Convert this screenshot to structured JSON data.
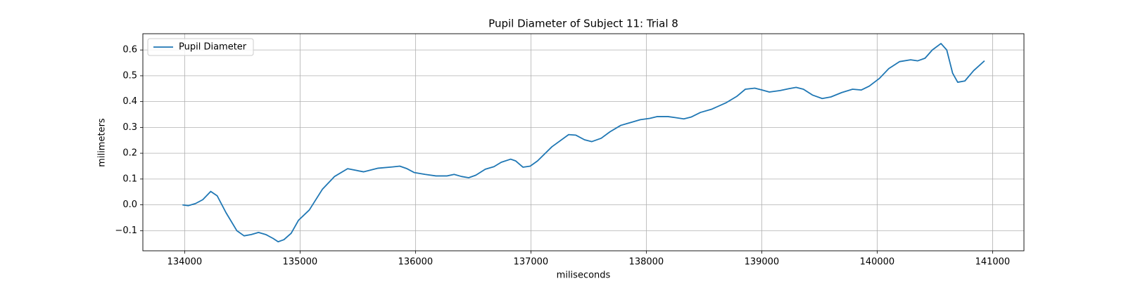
{
  "chart_data": {
    "type": "line",
    "title": "Pupil Diameter of Subject 11: Trial 8",
    "x_label": "miliseconds",
    "y_label": "milimeters",
    "x": [
      133981,
      134031,
      134094,
      134157,
      134226,
      134282,
      134358,
      134452,
      134515,
      134577,
      134640,
      134703,
      134766,
      134810,
      134860,
      134923,
      134986,
      135080,
      135193,
      135299,
      135412,
      135550,
      135676,
      135801,
      135864,
      135927,
      135990,
      136084,
      136178,
      136272,
      136335,
      136398,
      136461,
      136523,
      136605,
      136680,
      136743,
      136825,
      136869,
      136931,
      136994,
      137057,
      137182,
      137327,
      137390,
      137465,
      137528,
      137609,
      137685,
      137779,
      137873,
      137948,
      138030,
      138093,
      138187,
      138250,
      138325,
      138388,
      138469,
      138563,
      138689,
      138783,
      138858,
      138940,
      139003,
      139066,
      139160,
      139235,
      139298,
      139361,
      139442,
      139524,
      139599,
      139693,
      139787,
      139863,
      139932,
      140020,
      140101,
      140195,
      140290,
      140352,
      140415,
      140478,
      140553,
      140603,
      140654,
      140698,
      140760,
      140836,
      140930
    ],
    "series": [
      {
        "name": "Pupil Diameter",
        "color": "#1f77b4",
        "values": [
          0.0,
          -0.003,
          0.005,
          0.02,
          0.052,
          0.035,
          -0.03,
          -0.1,
          -0.12,
          -0.115,
          -0.107,
          -0.115,
          -0.13,
          -0.143,
          -0.135,
          -0.11,
          -0.06,
          -0.02,
          0.06,
          0.11,
          0.14,
          0.128,
          0.142,
          0.147,
          0.15,
          0.14,
          0.125,
          0.118,
          0.112,
          0.112,
          0.118,
          0.11,
          0.105,
          0.115,
          0.138,
          0.148,
          0.165,
          0.177,
          0.17,
          0.146,
          0.15,
          0.17,
          0.225,
          0.272,
          0.27,
          0.252,
          0.245,
          0.258,
          0.283,
          0.308,
          0.32,
          0.33,
          0.335,
          0.342,
          0.342,
          0.338,
          0.333,
          0.34,
          0.358,
          0.37,
          0.395,
          0.42,
          0.448,
          0.452,
          0.445,
          0.437,
          0.443,
          0.45,
          0.455,
          0.448,
          0.425,
          0.412,
          0.418,
          0.435,
          0.448,
          0.445,
          0.46,
          0.49,
          0.528,
          0.555,
          0.562,
          0.558,
          0.568,
          0.6,
          0.625,
          0.6,
          0.51,
          0.475,
          0.48,
          0.52,
          0.558
        ]
      }
    ],
    "xlim": [
      133638,
      141272
    ],
    "ylim": [
      -0.178,
      0.663
    ],
    "xticks": [
      134000,
      135000,
      136000,
      137000,
      138000,
      139000,
      140000,
      141000
    ],
    "yticks": [
      {
        "value": -0.1,
        "label": "−0.1"
      },
      {
        "value": 0,
        "label": "0.0"
      },
      0.1,
      0.2,
      0.3,
      0.4,
      0.5,
      0.6
    ],
    "grid": true,
    "legend": "upper left"
  }
}
